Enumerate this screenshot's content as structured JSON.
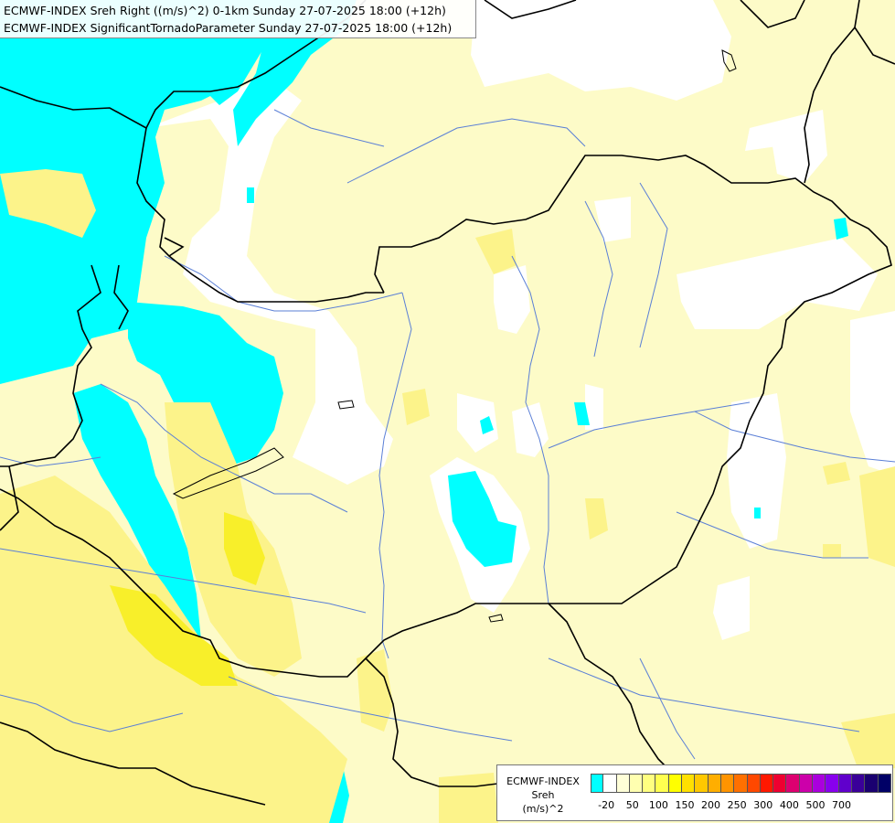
{
  "header": {
    "line1": "ECMWF-INDEX Sreh Right ((m/s)^2) 0-1km Sunday 27-07-2025 18:00 (+12h)",
    "line2": "ECMWF-INDEX SignificantTornadoParameter Sunday 27-07-2025 18:00 (+12h)"
  },
  "legend": {
    "title_line1": "ECMWF-INDEX",
    "title_line2": "Sreh",
    "title_line3": "(m/s)^2",
    "colors": [
      "#00ffff",
      "#ffffff",
      "#ffffd8",
      "#ffffb0",
      "#ffff80",
      "#ffff50",
      "#ffff00",
      "#ffe000",
      "#ffc800",
      "#ffae00",
      "#ff9400",
      "#ff7000",
      "#ff4800",
      "#ff1800",
      "#ee0030",
      "#dd0070",
      "#cc00aa",
      "#aa00dd",
      "#8800ee",
      "#6000cc",
      "#3a0099",
      "#1a0070",
      "#000066"
    ],
    "tick_labels": [
      "-20",
      "50",
      "100",
      "150",
      "200",
      "250",
      "300",
      "400",
      "500",
      "700"
    ]
  },
  "colors": {
    "background": "#fdfbc8",
    "cyan": "#00ffff",
    "white": "#ffffff",
    "yellow_mid": "#fcf38a",
    "yellow_strong": "#f8ef2a",
    "border": "#000000",
    "river": "#5a7fd6"
  }
}
